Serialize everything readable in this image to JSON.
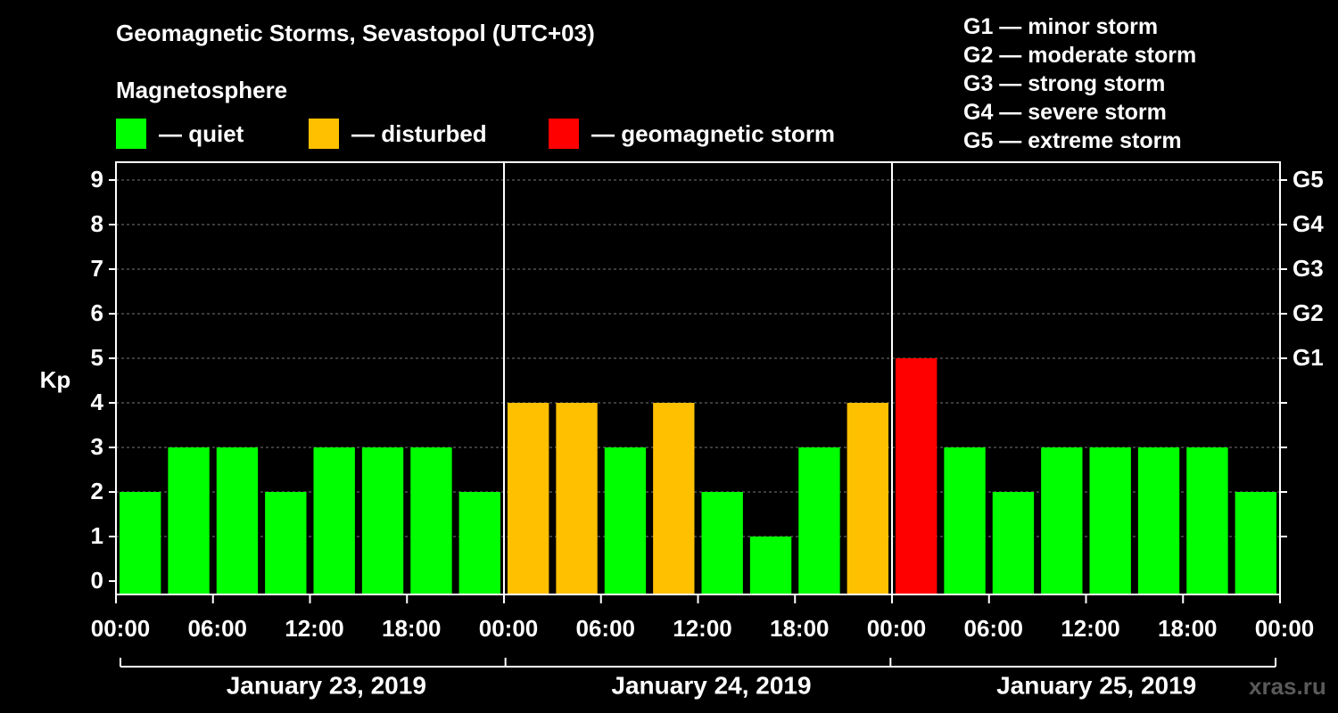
{
  "title": "Geomagnetic Storms, Sevastopol (UTC+03)",
  "subtitle": "Magnetosphere",
  "legend": [
    {
      "label": "— quiet",
      "color": "#00ff00"
    },
    {
      "label": "— disturbed",
      "color": "#ffc000"
    },
    {
      "label": "— geomagnetic storm",
      "color": "#ff0000"
    }
  ],
  "storm_scale": [
    "G1 — minor storm",
    "G2 — moderate storm",
    "G3 — strong storm",
    "G4 — severe storm",
    "G5 — extreme storm"
  ],
  "watermark": "xras.ru",
  "chart_data": {
    "type": "bar",
    "ylabel": "Kp",
    "ylim": [
      0,
      9
    ],
    "yticks": [
      "0",
      "1",
      "2",
      "3",
      "4",
      "5",
      "6",
      "7",
      "8",
      "9"
    ],
    "right_ticks": [
      {
        "value": 5,
        "label": "G1"
      },
      {
        "value": 6,
        "label": "G2"
      },
      {
        "value": 7,
        "label": "G3"
      },
      {
        "value": 8,
        "label": "G4"
      },
      {
        "value": 9,
        "label": "G5"
      }
    ],
    "x_tick_labels": [
      "00:00",
      "06:00",
      "12:00",
      "18:00",
      "00:00",
      "06:00",
      "12:00",
      "18:00",
      "00:00",
      "06:00",
      "12:00",
      "18:00",
      "00:00"
    ],
    "days": [
      "January 23, 2019",
      "January 24, 2019",
      "January 25, 2019"
    ],
    "values": [
      2,
      3,
      3,
      2,
      3,
      3,
      3,
      2,
      4,
      4,
      3,
      4,
      2,
      1,
      3,
      4,
      5,
      3,
      2,
      3,
      3,
      3,
      3,
      2
    ],
    "level_colors": {
      "quiet": "#00ff00",
      "disturbed": "#ffc000",
      "storm": "#ff0000"
    },
    "grid": true
  }
}
